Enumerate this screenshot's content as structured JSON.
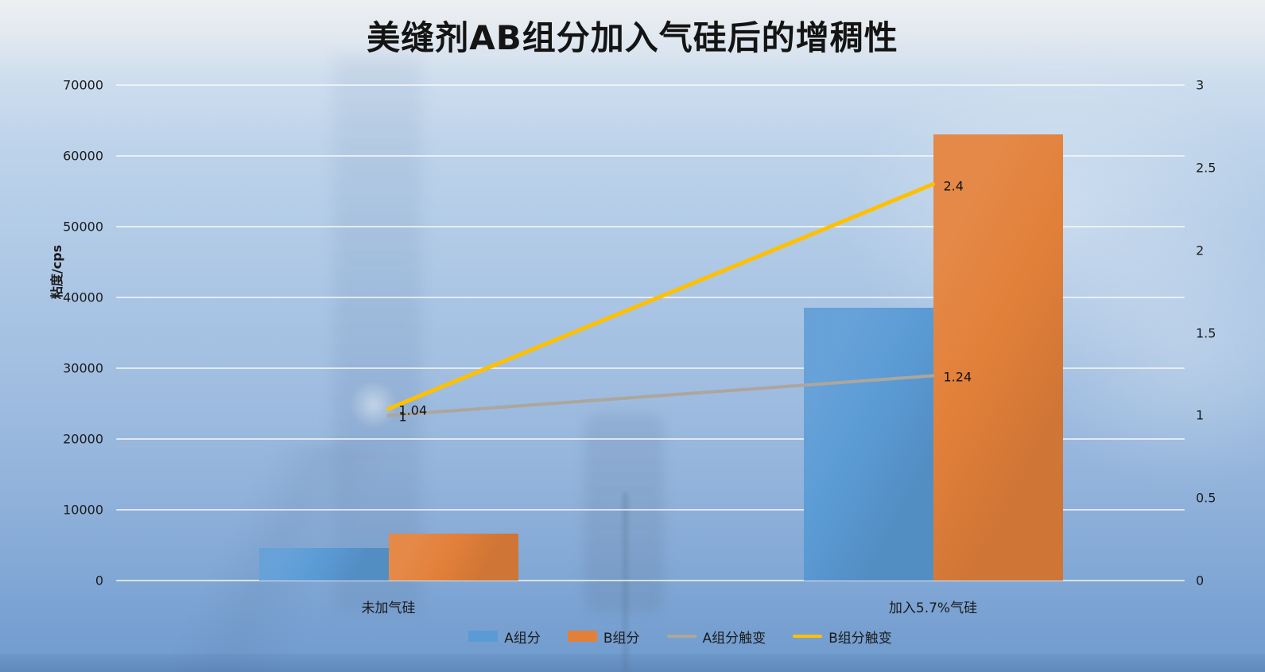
{
  "chart_data": {
    "type": "bar",
    "subtype": "combo-clustered-bar-with-lines-dual-axis",
    "title": "美缝剂AB组分加入气硅后的增稠性",
    "categories": [
      "未加气硅",
      "加入5.7%气硅"
    ],
    "bar_series": [
      {
        "name": "A组分",
        "values": [
          4600,
          38500
        ],
        "color": "#5b9bd5",
        "axis": "left"
      },
      {
        "name": "B组分",
        "values": [
          6600,
          63000
        ],
        "color": "#e2803a",
        "axis": "left"
      }
    ],
    "line_series": [
      {
        "name": "A组分触变",
        "values": [
          1,
          1.24
        ],
        "point_labels": [
          "1",
          "1.24"
        ],
        "color": "#aca69e",
        "stroke_width": 4,
        "axis": "right"
      },
      {
        "name": "B组分触变",
        "values": [
          1.04,
          2.4
        ],
        "point_labels": [
          "1.04",
          "2.4"
        ],
        "color": "#ffc000",
        "stroke_width": 5,
        "axis": "right"
      }
    ],
    "left_axis": {
      "title": "粘度/cps",
      "min": 0,
      "max": 70000,
      "step": 10000,
      "tick_labels": [
        "0",
        "10000",
        "20000",
        "30000",
        "40000",
        "50000",
        "60000",
        "70000"
      ]
    },
    "right_axis": {
      "min": 0,
      "max": 3,
      "step": 0.5,
      "tick_labels": [
        "0",
        "0.5",
        "1",
        "1.5",
        "2",
        "2.5",
        "3"
      ]
    },
    "grid": true,
    "gridline_color": "rgba(252,251,248,0.72)",
    "legend_position": "bottom",
    "legend": [
      "A组分",
      "B组分",
      "A组分触变",
      "B组分触变"
    ],
    "background": "light blue laboratory photo wash"
  }
}
